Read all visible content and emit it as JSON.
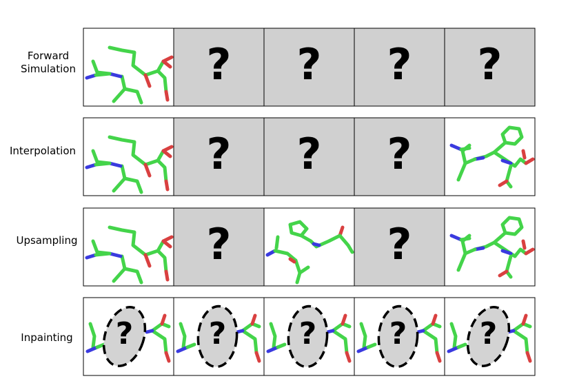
{
  "question_mark": "?",
  "colors": {
    "carbon": "#44d44a",
    "nitrogen": "#3a3adf",
    "oxygen": "#d94040",
    "unknown_fill": "#d0d0d0",
    "mask_fill": "#d3d3d3",
    "frame": "#000000"
  },
  "rows": [
    {
      "label_lines": [
        "Forward",
        "Simulation"
      ],
      "cells": [
        "structure",
        "unknown",
        "unknown",
        "unknown",
        "unknown"
      ]
    },
    {
      "label_lines": [
        "Interpolation"
      ],
      "cells": [
        "structure",
        "unknown",
        "unknown",
        "unknown",
        "structure"
      ]
    },
    {
      "label_lines": [
        "Upsampling"
      ],
      "cells": [
        "structure",
        "unknown",
        "structure",
        "unknown",
        "structure"
      ]
    },
    {
      "label_lines": [
        "Inpainting"
      ],
      "cells": [
        "masked",
        "masked",
        "masked",
        "masked",
        "masked"
      ]
    }
  ]
}
